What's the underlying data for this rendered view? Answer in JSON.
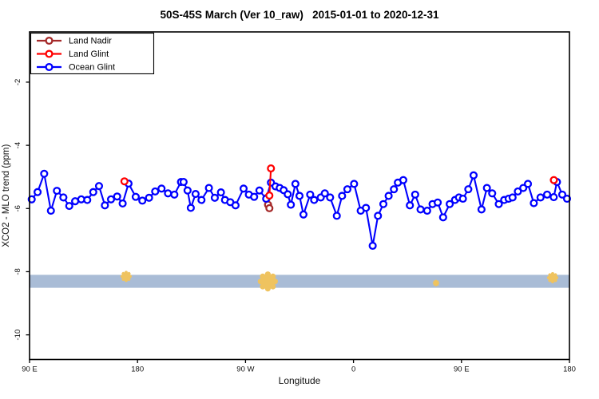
{
  "title": "50S-45S March (Ver 10_raw)   2015-01-01 to 2020-12-31",
  "legend": {
    "position": "top-left",
    "items": [
      {
        "label": "Land Nadir",
        "color": "#A52A2A"
      },
      {
        "label": "Land Glint",
        "color": "#FF0000"
      },
      {
        "label": "Ocean Glint",
        "color": "#0000FF"
      }
    ]
  },
  "colors": {
    "land_nadir": "#A52A2A",
    "land_glint": "#FF0000",
    "ocean_glint": "#0000FF",
    "band": "#A9BCD6",
    "flag_marker": "#EFC35F",
    "axis": "#000000"
  },
  "chart_data": {
    "type": "line",
    "title": "50S-45S March (Ver 10_raw)   2015-01-01 to 2020-12-31",
    "xlabel": "Longitude",
    "ylabel": "XCO2 - MLO trend (ppm)",
    "grid": false,
    "legend_position": "top-left inside plot",
    "x_axis": {
      "note": "longitude axis wraps eastward starting at 90E; stored as degrees along axis 90..540",
      "domain": [
        90,
        540
      ],
      "ticks": [
        {
          "deg": 90,
          "label": "90 E"
        },
        {
          "deg": 180,
          "label": "180"
        },
        {
          "deg": 270,
          "label": "90 W"
        },
        {
          "deg": 360,
          "label": "0"
        },
        {
          "deg": 450,
          "label": "90 E"
        },
        {
          "deg": 540,
          "label": "180"
        }
      ]
    },
    "y_axis": {
      "domain": [
        -10.78,
        -0.41
      ],
      "ticks": [
        -2,
        -4,
        -6,
        -8,
        -10
      ]
    },
    "band": {
      "y_top": -8.1,
      "y_bottom": -8.51,
      "color": "#A9BCD6"
    },
    "flag_markers": {
      "color": "#EFC35F",
      "points": [
        {
          "x": 170.5,
          "y": -8.15,
          "r": 5
        },
        {
          "x": 288.6,
          "y": -8.31,
          "r": 9
        },
        {
          "x": 428.8,
          "y": -8.36,
          "r": 3
        },
        {
          "x": 526.0,
          "y": -8.19,
          "r": 5
        }
      ]
    },
    "series": [
      {
        "name": "Land Nadir",
        "color": "#A52A2A",
        "marker": "open-circle",
        "segments": [
          [
            [
              287.8,
              -5.67
            ],
            [
              288.8,
              -5.88
            ],
            [
              289.9,
              -5.99
            ]
          ]
        ]
      },
      {
        "name": "Ocean Glint",
        "color": "#0000FF",
        "marker": "open-circle",
        "segments": [
          [
            [
              91.8,
              -5.71
            ],
            [
              96.7,
              -5.48
            ],
            [
              102.2,
              -4.9
            ],
            [
              107.8,
              -6.07
            ],
            [
              112.8,
              -5.44
            ],
            [
              118.2,
              -5.65
            ],
            [
              123.1,
              -5.92
            ],
            [
              128,
              -5.77
            ],
            [
              133.1,
              -5.71
            ],
            [
              138.1,
              -5.73
            ],
            [
              143.1,
              -5.48
            ],
            [
              147.9,
              -5.29
            ],
            [
              152.8,
              -5.9
            ],
            [
              157.9,
              -5.71
            ],
            [
              163,
              -5.62
            ],
            [
              167.6,
              -5.84
            ],
            [
              172.5,
              -5.21
            ],
            [
              178.5,
              -5.63
            ],
            [
              184,
              -5.75
            ],
            [
              189.6,
              -5.66
            ],
            [
              194.7,
              -5.46
            ],
            [
              200,
              -5.37
            ],
            [
              205.4,
              -5.52
            ],
            [
              210.7,
              -5.56
            ],
            [
              216.2,
              -5.16
            ],
            [
              218.4,
              -5.16
            ],
            [
              221.7,
              -5.43
            ],
            [
              224.4,
              -5.98
            ],
            [
              228.4,
              -5.54
            ],
            [
              233.3,
              -5.73
            ],
            [
              239.5,
              -5.35
            ],
            [
              244.4,
              -5.66
            ],
            [
              249.5,
              -5.49
            ],
            [
              252.9,
              -5.73
            ],
            [
              257.3,
              -5.8
            ],
            [
              261.7,
              -5.9
            ],
            [
              268.4,
              -5.37
            ],
            [
              272.8,
              -5.56
            ],
            [
              277.2,
              -5.63
            ],
            [
              281.6,
              -5.43
            ],
            [
              287.2,
              -5.69
            ],
            [
              291.2,
              -5.18
            ],
            [
              295,
              -5.3
            ],
            [
              298.5,
              -5.35
            ],
            [
              301.8,
              -5.42
            ],
            [
              305.2,
              -5.55
            ],
            [
              307.8,
              -5.88
            ],
            [
              311.6,
              -5.22
            ],
            [
              315,
              -5.6
            ],
            [
              318.3,
              -6.19
            ],
            [
              323.9,
              -5.56
            ],
            [
              327.2,
              -5.73
            ],
            [
              332.7,
              -5.65
            ],
            [
              336.1,
              -5.52
            ],
            [
              340.5,
              -5.65
            ],
            [
              346.1,
              -6.23
            ],
            [
              350.5,
              -5.6
            ],
            [
              354.9,
              -5.39
            ],
            [
              360.5,
              -5.22
            ],
            [
              366,
              -6.07
            ],
            [
              370.4,
              -5.98
            ],
            [
              376,
              -7.18
            ],
            [
              380.4,
              -6.23
            ],
            [
              384.9,
              -5.86
            ],
            [
              389.3,
              -5.6
            ],
            [
              393.7,
              -5.39
            ],
            [
              397,
              -5.18
            ],
            [
              401.5,
              -5.1
            ],
            [
              407,
              -5.9
            ],
            [
              411.4,
              -5.56
            ],
            [
              415.9,
              -6.03
            ],
            [
              421.4,
              -6.07
            ],
            [
              425.9,
              -5.86
            ],
            [
              430.2,
              -5.81
            ],
            [
              434.7,
              -6.28
            ],
            [
              440.2,
              -5.86
            ],
            [
              444.6,
              -5.73
            ],
            [
              447.9,
              -5.65
            ],
            [
              451.2,
              -5.69
            ],
            [
              455.7,
              -5.39
            ],
            [
              460.1,
              -4.95
            ],
            [
              466.7,
              -6.03
            ],
            [
              471.2,
              -5.35
            ],
            [
              475.6,
              -5.52
            ],
            [
              481.1,
              -5.86
            ],
            [
              485.6,
              -5.73
            ],
            [
              489.3,
              -5.69
            ],
            [
              492.6,
              -5.65
            ],
            [
              497,
              -5.46
            ],
            [
              501.5,
              -5.35
            ],
            [
              505.4,
              -5.22
            ],
            [
              510.3,
              -5.83
            ],
            [
              515.9,
              -5.65
            ],
            [
              521.4,
              -5.56
            ],
            [
              526.9,
              -5.64
            ],
            [
              529.6,
              -5.16
            ],
            [
              534,
              -5.56
            ],
            [
              538,
              -5.69
            ]
          ]
        ]
      },
      {
        "name": "Land Glint",
        "color": "#FF0000",
        "marker": "open-circle",
        "segments": [
          [
            [
              169.1,
              -5.14
            ]
          ],
          [
            [
              289.9,
              -5.59
            ],
            [
              291.2,
              -4.73
            ]
          ],
          [
            [
              527.0,
              -5.1
            ]
          ]
        ]
      }
    ]
  }
}
